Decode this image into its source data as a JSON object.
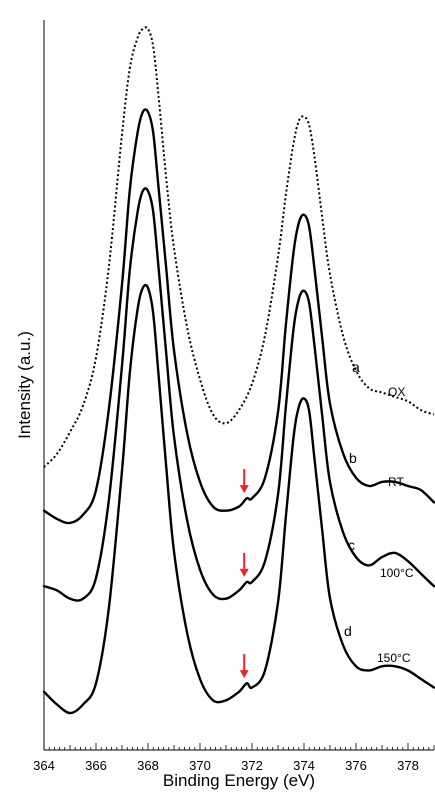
{
  "chart_data": {
    "type": "line",
    "title": "",
    "xlabel": "Binding Energy (eV)",
    "ylabel": "Intensity (a.u.)",
    "xlim": [
      364,
      379
    ],
    "x_ticks": [
      364,
      366,
      368,
      370,
      372,
      374,
      376,
      378
    ],
    "y_ticks": false,
    "grid": false,
    "legend": "none",
    "series": [
      {
        "name": "",
        "label": "a",
        "condition": "OX",
        "style": "dotted",
        "x": [
          364.0,
          364.5,
          365.0,
          365.5,
          366.0,
          366.5,
          367.0,
          367.3,
          367.6,
          367.8,
          368.0,
          368.2,
          368.4,
          368.7,
          369.0,
          369.5,
          370.0,
          370.5,
          371.0,
          371.5,
          372.0,
          372.5,
          373.0,
          373.3,
          373.6,
          373.8,
          374.0,
          374.2,
          374.4,
          374.7,
          375.0,
          375.5,
          376.0,
          376.5,
          377.0,
          377.5,
          378.0,
          378.5,
          379.0
        ],
        "y": [
          0.0,
          0.03,
          0.08,
          0.14,
          0.25,
          0.46,
          0.76,
          0.91,
          0.98,
          1.0,
          1.0,
          0.96,
          0.85,
          0.66,
          0.5,
          0.32,
          0.2,
          0.12,
          0.1,
          0.13,
          0.19,
          0.3,
          0.48,
          0.62,
          0.74,
          0.79,
          0.8,
          0.78,
          0.71,
          0.57,
          0.44,
          0.3,
          0.22,
          0.18,
          0.17,
          0.16,
          0.15,
          0.13,
          0.12
        ]
      },
      {
        "name": "",
        "label": "b",
        "condition": "RT",
        "style": "solid",
        "x": [
          364.0,
          364.5,
          365.0,
          365.5,
          366.0,
          366.5,
          367.0,
          367.3,
          367.6,
          367.8,
          368.0,
          368.2,
          368.4,
          368.7,
          369.0,
          369.5,
          370.0,
          370.5,
          371.0,
          371.5,
          371.8,
          372.0,
          372.5,
          373.0,
          373.3,
          373.6,
          373.8,
          374.0,
          374.2,
          374.4,
          374.7,
          375.0,
          375.5,
          376.0,
          376.5,
          377.0,
          377.5,
          378.0,
          378.5,
          379.0
        ],
        "y": [
          0.03,
          0.01,
          0.0,
          0.02,
          0.08,
          0.28,
          0.58,
          0.81,
          0.95,
          1.0,
          1.0,
          0.95,
          0.82,
          0.62,
          0.42,
          0.22,
          0.1,
          0.04,
          0.03,
          0.04,
          0.06,
          0.06,
          0.11,
          0.27,
          0.48,
          0.66,
          0.73,
          0.75,
          0.72,
          0.62,
          0.45,
          0.29,
          0.17,
          0.11,
          0.09,
          0.1,
          0.1,
          0.09,
          0.08,
          0.05
        ]
      },
      {
        "name": "",
        "label": "c",
        "condition": "100°C",
        "style": "solid",
        "x": [
          364.0,
          364.5,
          365.0,
          365.5,
          366.0,
          366.5,
          367.0,
          367.3,
          367.6,
          367.8,
          368.0,
          368.2,
          368.4,
          368.7,
          369.0,
          369.5,
          370.0,
          370.5,
          371.0,
          371.5,
          371.8,
          372.0,
          372.5,
          373.0,
          373.3,
          373.6,
          373.8,
          374.0,
          374.2,
          374.4,
          374.7,
          375.0,
          375.5,
          376.0,
          376.5,
          377.0,
          377.5,
          378.0,
          378.5,
          379.0
        ],
        "y": [
          0.05,
          0.04,
          0.02,
          0.02,
          0.07,
          0.26,
          0.58,
          0.81,
          0.95,
          1.0,
          1.0,
          0.95,
          0.82,
          0.61,
          0.41,
          0.21,
          0.09,
          0.03,
          0.02,
          0.04,
          0.06,
          0.06,
          0.11,
          0.27,
          0.48,
          0.67,
          0.74,
          0.76,
          0.73,
          0.63,
          0.46,
          0.3,
          0.18,
          0.12,
          0.1,
          0.12,
          0.13,
          0.11,
          0.08,
          0.05
        ]
      },
      {
        "name": "",
        "label": "d",
        "condition": "150°C",
        "style": "solid",
        "x": [
          364.0,
          364.5,
          365.0,
          365.5,
          366.0,
          366.5,
          367.0,
          367.3,
          367.6,
          367.8,
          368.0,
          368.2,
          368.4,
          368.7,
          369.0,
          369.5,
          370.0,
          370.5,
          371.0,
          371.5,
          371.8,
          372.0,
          372.5,
          373.0,
          373.3,
          373.6,
          373.8,
          374.0,
          374.2,
          374.4,
          374.7,
          375.0,
          375.5,
          376.0,
          376.5,
          377.0,
          377.5,
          378.0,
          378.5,
          379.0
        ],
        "y": [
          0.05,
          0.02,
          0.0,
          0.02,
          0.07,
          0.25,
          0.57,
          0.8,
          0.95,
          1.0,
          1.0,
          0.94,
          0.8,
          0.58,
          0.38,
          0.19,
          0.08,
          0.03,
          0.03,
          0.05,
          0.07,
          0.06,
          0.1,
          0.26,
          0.46,
          0.65,
          0.72,
          0.74,
          0.71,
          0.6,
          0.43,
          0.27,
          0.16,
          0.11,
          0.1,
          0.11,
          0.11,
          0.1,
          0.08,
          0.06
        ]
      }
    ],
    "annotations": [
      {
        "type": "arrow",
        "color": "#e8262b",
        "x": 371.7,
        "series": "b"
      },
      {
        "type": "arrow",
        "color": "#e8262b",
        "x": 371.7,
        "series": "c"
      },
      {
        "type": "arrow",
        "color": "#e8262b",
        "x": 371.7,
        "series": "d"
      }
    ],
    "colors": {
      "curve": "#000000",
      "arrow": "#e8262b"
    }
  }
}
